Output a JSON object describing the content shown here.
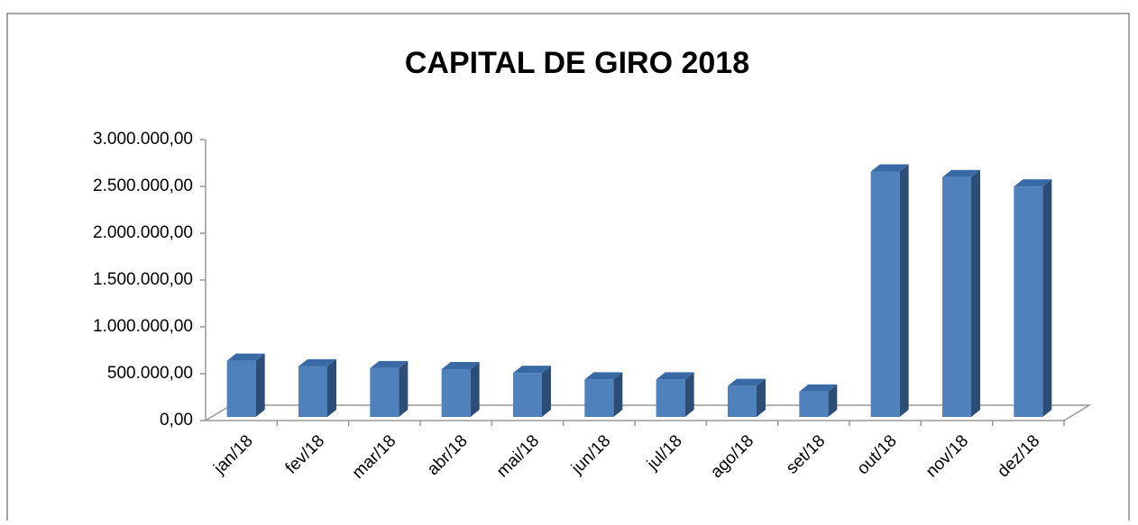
{
  "chart_data": {
    "type": "bar3d",
    "title": "CAPITAL DE GIRO 2018",
    "categories": [
      "jan/18",
      "fev/18",
      "mar/18",
      "abr/18",
      "mai/18",
      "jun/18",
      "jul/18",
      "ago/18",
      "set/18",
      "out/18",
      "nov/18",
      "dez/18"
    ],
    "values": [
      600000,
      540000,
      520000,
      510000,
      470000,
      400000,
      400000,
      330000,
      270000,
      2620000,
      2560000,
      2460000
    ],
    "color": "#4f81bd",
    "ylim": [
      0,
      3000000
    ],
    "yticks": [
      {
        "value": 0,
        "label": "0,00"
      },
      {
        "value": 500000,
        "label": "500.000,00"
      },
      {
        "value": 1000000,
        "label": "1.000.000,00"
      },
      {
        "value": 1500000,
        "label": "1.500.000,00"
      },
      {
        "value": 2000000,
        "label": "2.000.000,00"
      },
      {
        "value": 2500000,
        "label": "2.500.000,00"
      },
      {
        "value": 3000000,
        "label": "3.000.000,00"
      }
    ],
    "grid": false
  }
}
